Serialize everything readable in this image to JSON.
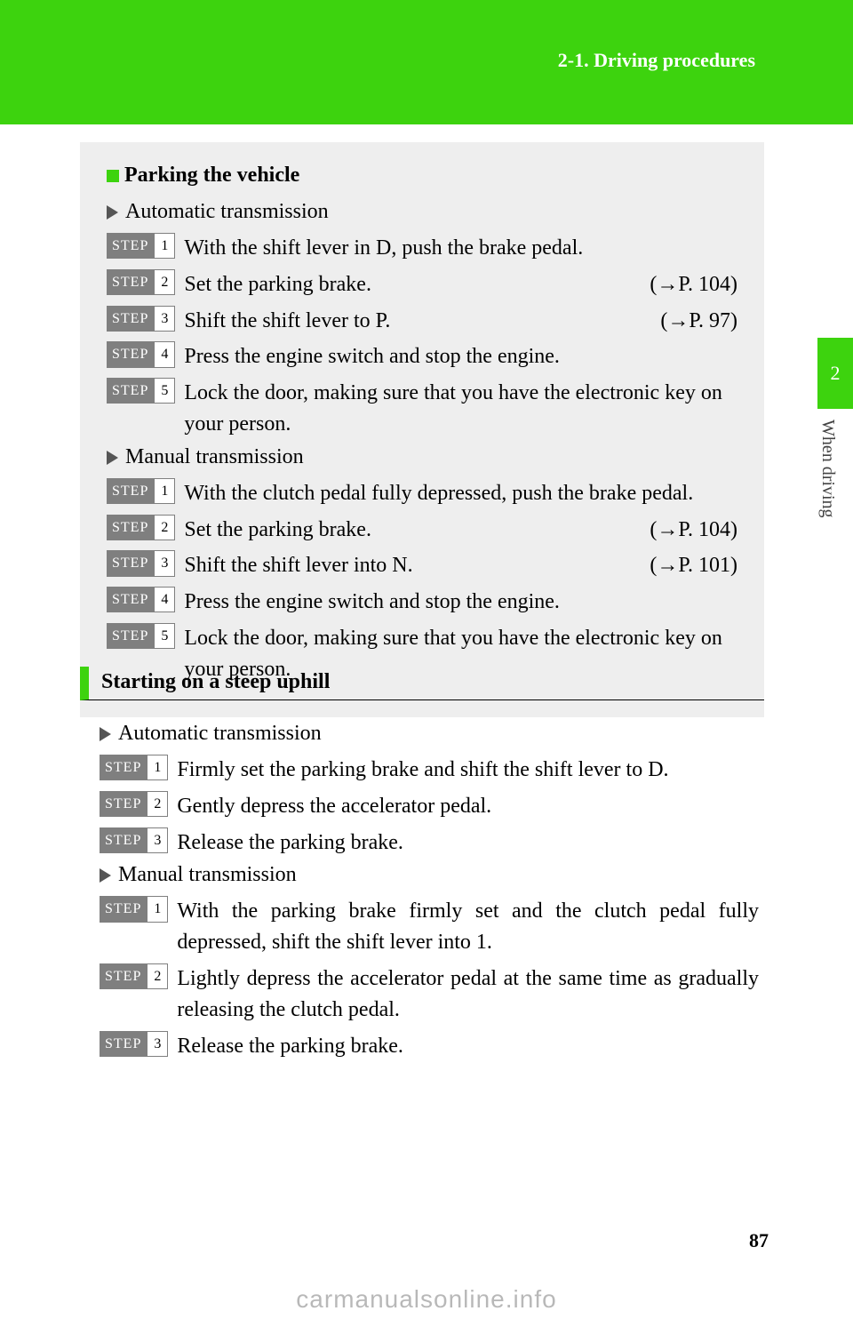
{
  "colors": {
    "accent": "#3dd30e",
    "gray_box": "#eeeeee",
    "step_gray": "#7f7f7f",
    "tri": "#555555"
  },
  "header": {
    "breadcrumb": "2-1. Driving procedures"
  },
  "side_tab": {
    "number": "2",
    "label": "When driving"
  },
  "box": {
    "title": "Parking the vehicle",
    "auto_label": "Automatic transmission",
    "manual_label": "Manual transmission",
    "step_word": "STEP",
    "auto_steps": [
      {
        "n": "1",
        "text": "With the shift lever in D, push the brake pedal.",
        "ref": ""
      },
      {
        "n": "2",
        "text": "Set the parking brake.",
        "ref": "(→P. 104)"
      },
      {
        "n": "3",
        "text": "Shift the shift lever to P.",
        "ref": "(→P. 97)"
      },
      {
        "n": "4",
        "text": "Press the engine switch and stop the engine.",
        "ref": ""
      },
      {
        "n": "5",
        "text": "Lock the door, making sure that you have the electronic key on your person.",
        "ref": ""
      }
    ],
    "manual_steps": [
      {
        "n": "1",
        "text": "With the clutch pedal fully depressed, push the brake pedal.",
        "ref": ""
      },
      {
        "n": "2",
        "text": "Set the parking brake.",
        "ref": "(→P. 104)"
      },
      {
        "n": "3",
        "text": "Shift the shift lever into N.",
        "ref": "(→P. 101)"
      },
      {
        "n": "4",
        "text": "Press the engine switch and stop the engine.",
        "ref": ""
      },
      {
        "n": "5",
        "text": "Lock the door, making sure that you have the electronic key on your person.",
        "ref": ""
      }
    ]
  },
  "section2": {
    "heading": "Starting on a steep uphill",
    "auto_label": "Automatic transmission",
    "manual_label": "Manual transmission",
    "step_word": "STEP",
    "auto_steps": [
      {
        "n": "1",
        "text": "Firmly set the parking brake and shift the shift lever to D."
      },
      {
        "n": "2",
        "text": "Gently depress the accelerator pedal."
      },
      {
        "n": "3",
        "text": "Release the parking brake."
      }
    ],
    "manual_steps": [
      {
        "n": "1",
        "text": "With the parking brake firmly set and the clutch pedal fully depressed, shift the shift lever into 1."
      },
      {
        "n": "2",
        "text": "Lightly depress the accelerator pedal at the same time as gradually releasing the clutch pedal."
      },
      {
        "n": "3",
        "text": "Release the parking brake."
      }
    ]
  },
  "page_number": "87",
  "watermark": "carmanualsonline.info"
}
